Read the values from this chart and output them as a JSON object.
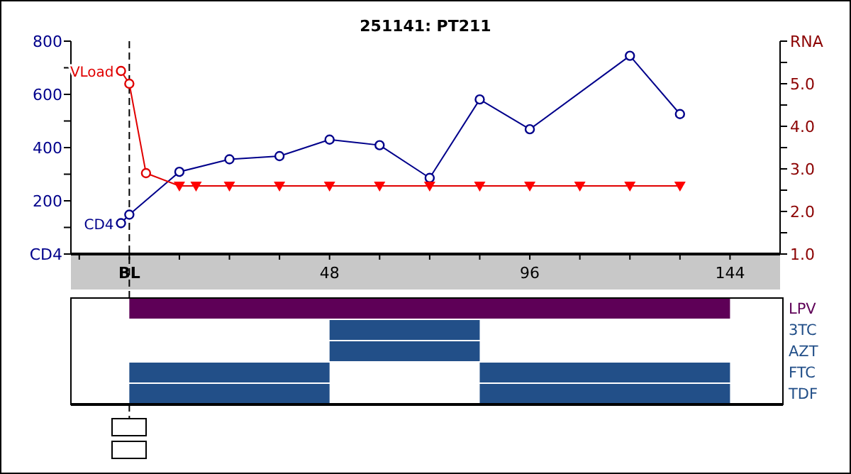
{
  "chart_data": [
    {
      "type": "line",
      "title": "251141: PT211",
      "xlim": [
        -14,
        156
      ],
      "xticks": [
        {
          "value": -12,
          "label": null
        },
        {
          "value": 0,
          "label": "BL"
        },
        {
          "value": 12,
          "label": null
        },
        {
          "value": 24,
          "label": null
        },
        {
          "value": 36,
          "label": null
        },
        48,
        {
          "value": 60,
          "label": null
        },
        {
          "value": 72,
          "label": null
        },
        {
          "value": 84,
          "label": null
        },
        96,
        {
          "value": 108,
          "label": null
        },
        {
          "value": 120,
          "label": null
        },
        {
          "value": 132,
          "label": null
        },
        144
      ],
      "ylim": [
        0,
        800
      ],
      "yticks": [
        {
          "value": 0,
          "label": "CD4"
        },
        {
          "value": 100,
          "label": null
        },
        200,
        {
          "value": 300,
          "label": null
        },
        400,
        {
          "value": 500,
          "label": null
        },
        600,
        {
          "value": 700,
          "label": null
        },
        800
      ],
      "y2lim": [
        1,
        6
      ],
      "y2ticks": [
        {
          "value": 1,
          "label": "1.0"
        },
        {
          "value": 1.5,
          "label": null
        },
        {
          "value": 2,
          "label": "2.0"
        },
        {
          "value": 2.5,
          "label": null
        },
        {
          "value": 3,
          "label": "3.0"
        },
        {
          "value": 3.5,
          "label": null
        },
        {
          "value": 4,
          "label": "4.0"
        },
        {
          "value": 4.5,
          "label": null
        },
        {
          "value": 5,
          "label": "5.0"
        },
        {
          "value": 5.5,
          "label": null
        },
        {
          "value": 6,
          "label": "RNA"
        }
      ],
      "grid": false,
      "series": [
        {
          "name": "CD4",
          "type": "line",
          "color": "#00008b",
          "marker": "circle",
          "x": [
            -2,
            0,
            12,
            24,
            36,
            48,
            60,
            72,
            84,
            96,
            120,
            132
          ],
          "values": [
            116,
            148,
            309,
            356,
            368,
            430,
            409,
            286,
            581,
            469,
            745,
            526
          ]
        },
        {
          "name": "VLoad",
          "type": "line",
          "axis": "y2",
          "color": "#e00000",
          "marker": "none",
          "x": [
            -2,
            0,
            4,
            12,
            16,
            24,
            36,
            48,
            60,
            72,
            84,
            96,
            108,
            120,
            132
          ],
          "values": [
            5.3,
            5.0,
            2.9,
            2.6,
            2.6,
            2.6,
            2.6,
            2.6,
            2.6,
            2.6,
            2.6,
            2.6,
            2.6,
            2.6,
            2.6
          ]
        },
        {
          "type": "scatter",
          "axis": "y2",
          "color": "#e00000",
          "marker": "circle",
          "x": [
            -2,
            0,
            4
          ],
          "values": [
            5.3,
            5.0,
            2.9
          ]
        },
        {
          "type": "scatter",
          "axis": "y2",
          "color": "#ff0000",
          "marker": "triangle",
          "x": [
            12,
            16,
            24,
            36,
            48,
            60,
            72,
            84,
            96,
            108,
            120,
            132
          ],
          "values": [
            2.6,
            2.6,
            2.6,
            2.6,
            2.6,
            2.6,
            2.6,
            2.6,
            2.6,
            2.6,
            2.6,
            2.6
          ]
        }
      ],
      "ref_lines": [
        {
          "axis": "x",
          "value": 0,
          "color": "#000000",
          "line_style": "dashed"
        }
      ]
    },
    {
      "type": "bar",
      "orientation": "horizontal",
      "xlim": [
        -14,
        156
      ],
      "tick_labels": "y",
      "categories": [
        "LPV",
        "3TC",
        "AZT",
        "FTC",
        "TDF"
      ],
      "series": [
        {
          "colors": [
            "#5e0057",
            "#224f88",
            "#224f88",
            "#224f88",
            "#224f88"
          ],
          "base": [
            0,
            48,
            48,
            0,
            0
          ],
          "values": [
            144,
            36,
            36,
            48,
            48
          ]
        },
        {
          "color": "#224f88",
          "base": [
            null,
            null,
            null,
            84,
            84
          ],
          "values": [
            null,
            null,
            null,
            60,
            60
          ]
        }
      ]
    }
  ]
}
